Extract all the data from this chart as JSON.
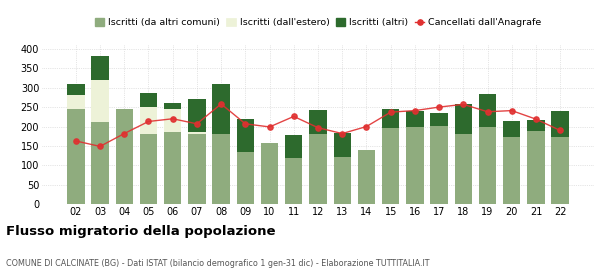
{
  "years": [
    "02",
    "03",
    "04",
    "05",
    "06",
    "07",
    "08",
    "09",
    "10",
    "11",
    "12",
    "13",
    "14",
    "15",
    "16",
    "17",
    "18",
    "19",
    "20",
    "21",
    "22"
  ],
  "iscritti_altri_comuni": [
    245,
    212,
    245,
    180,
    185,
    182,
    182,
    135,
    157,
    118,
    180,
    123,
    141,
    197,
    199,
    202,
    182,
    200,
    173,
    188,
    172
  ],
  "iscritti_estero": [
    35,
    108,
    0,
    70,
    60,
    5,
    0,
    0,
    0,
    0,
    0,
    0,
    0,
    0,
    0,
    0,
    0,
    0,
    0,
    0,
    0
  ],
  "iscritti_altri": [
    30,
    60,
    0,
    35,
    15,
    85,
    128,
    85,
    0,
    60,
    62,
    60,
    0,
    48,
    40,
    33,
    75,
    83,
    42,
    30,
    68
  ],
  "cancellati": [
    163,
    149,
    182,
    213,
    220,
    207,
    258,
    207,
    199,
    226,
    197,
    182,
    200,
    237,
    241,
    250,
    257,
    238,
    241,
    219,
    190
  ],
  "color_altri_comuni": "#8fac7e",
  "color_estero": "#edf2d8",
  "color_altri": "#2d6a2d",
  "color_cancellati": "#e03030",
  "ylim": [
    0,
    410
  ],
  "yticks": [
    0,
    50,
    100,
    150,
    200,
    250,
    300,
    350,
    400
  ],
  "title": "Flusso migratorio della popolazione",
  "subtitle": "COMUNE DI CALCINATE (BG) - Dati ISTAT (bilancio demografico 1 gen-31 dic) - Elaborazione TUTTITALIA.IT",
  "legend_labels": [
    "Iscritti (da altri comuni)",
    "Iscritti (dall'estero)",
    "Iscritti (altri)",
    "Cancellati dall'Anagrafe"
  ],
  "bar_width": 0.72,
  "figsize": [
    6.0,
    2.8
  ],
  "dpi": 100
}
